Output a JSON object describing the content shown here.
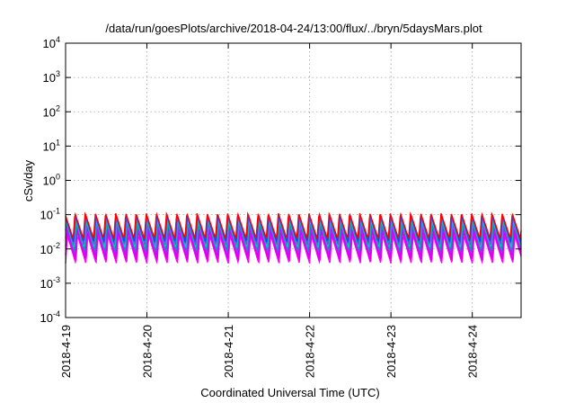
{
  "chart_data": {
    "type": "line",
    "title": "/data/run/goesPlots/archive/2018-04-24/13:00/flux/../bryn/5daysMars.plot",
    "xlabel": "Coordinated Universal Time (UTC)",
    "ylabel": "cSv/day",
    "y_scale": "log",
    "ylim": [
      0.0001,
      10000
    ],
    "xlim": [
      0,
      5.6
    ],
    "grid": true,
    "y_ticks": [
      {
        "value": 0.0001,
        "base": "10",
        "exp": "-4"
      },
      {
        "value": 0.001,
        "base": "10",
        "exp": "-3"
      },
      {
        "value": 0.01,
        "base": "10",
        "exp": "-2"
      },
      {
        "value": 0.1,
        "base": "10",
        "exp": "-1"
      },
      {
        "value": 1,
        "base": "10",
        "exp": "0"
      },
      {
        "value": 10,
        "base": "10",
        "exp": "1"
      },
      {
        "value": 100,
        "base": "10",
        "exp": "2"
      },
      {
        "value": 1000,
        "base": "10",
        "exp": "3"
      },
      {
        "value": 10000,
        "base": "10",
        "exp": "4"
      }
    ],
    "x_ticks": [
      {
        "value": 0,
        "label": "2018-4-19"
      },
      {
        "value": 1,
        "label": "2018-4-20"
      },
      {
        "value": 2,
        "label": "2018-4-21"
      },
      {
        "value": 3,
        "label": "2018-4-22"
      },
      {
        "value": 4,
        "label": "2018-4-23"
      },
      {
        "value": 5,
        "label": "2018-4-24"
      }
    ],
    "sawtooth_cycles_per_day": 8,
    "series": [
      {
        "color": "#ff00ff",
        "peak": 0.025,
        "trough": 0.0038
      },
      {
        "color": "#e000e0",
        "peak": 0.032,
        "trough": 0.0048
      },
      {
        "color": "#d400ff",
        "peak": 0.04,
        "trough": 0.006
      },
      {
        "color": "#9b30ff",
        "peak": 0.05,
        "trough": 0.0075
      },
      {
        "color": "#00a0a0",
        "peak": 0.06,
        "trough": 0.009
      },
      {
        "color": "#00cccc",
        "peak": 0.07,
        "trough": 0.011
      },
      {
        "color": "#6a5acd",
        "peak": 0.085,
        "trough": 0.013
      },
      {
        "color": "#2040ff",
        "peak": 0.1,
        "trough": 0.016
      },
      {
        "color": "#ff0000",
        "peak": 0.11,
        "trough": 0.02
      }
    ]
  }
}
